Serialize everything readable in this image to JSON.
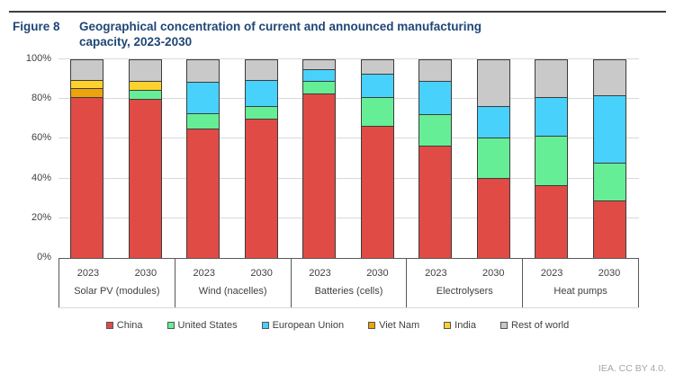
{
  "figure": {
    "label": "Figure 8",
    "title": "Geographical concentration of current and announced manufacturing capacity, 2023-2030"
  },
  "chart_data": {
    "type": "bar",
    "stacked": true,
    "orientation": "vertical",
    "unit": "%",
    "ylim": [
      0,
      100
    ],
    "yticks": [
      0,
      20,
      40,
      60,
      80,
      100
    ],
    "ytick_labels": [
      "0%",
      "20%",
      "40%",
      "60%",
      "80%",
      "100%"
    ],
    "grid": true,
    "legend_position": "bottom",
    "series": [
      {
        "name": "China",
        "color": "#e04b45"
      },
      {
        "name": "United States",
        "color": "#66ee96"
      },
      {
        "name": "European Union",
        "color": "#48d1fa"
      },
      {
        "name": "Viet Nam",
        "color": "#eda40a"
      },
      {
        "name": "India",
        "color": "#fdd22e"
      },
      {
        "name": "Rest of world",
        "color": "#c9c9c9"
      }
    ],
    "groups": [
      {
        "category": "Solar PV (modules)",
        "bars": [
          {
            "year": "2023",
            "values": [
              81,
              0,
              0,
              4.5,
              4,
              10.5
            ]
          },
          {
            "year": "2030",
            "values": [
              80,
              4.5,
              0,
              0,
              4.5,
              11
            ]
          }
        ]
      },
      {
        "category": "Wind (nacelles)",
        "bars": [
          {
            "year": "2023",
            "values": [
              65,
              8,
              15.5,
              0,
              0,
              11.5
            ]
          },
          {
            "year": "2030",
            "values": [
              70,
              6.5,
              13,
              0,
              0,
              10.5
            ]
          }
        ]
      },
      {
        "category": "Batteries (cells)",
        "bars": [
          {
            "year": "2023",
            "values": [
              83,
              6,
              6,
              0,
              0,
              5
            ]
          },
          {
            "year": "2030",
            "values": [
              66.5,
              14.5,
              12,
              0,
              0,
              7
            ]
          }
        ]
      },
      {
        "category": "Electrolysers",
        "bars": [
          {
            "year": "2023",
            "values": [
              56.5,
              16,
              16.5,
              0,
              0,
              11
            ]
          },
          {
            "year": "2030",
            "values": [
              40.5,
              20,
              16,
              0,
              0,
              23.5
            ]
          }
        ]
      },
      {
        "category": "Heat pumps",
        "bars": [
          {
            "year": "2023",
            "values": [
              36.5,
              25,
              19.5,
              0,
              0,
              19
            ]
          },
          {
            "year": "2030",
            "values": [
              29,
              19,
              34,
              0,
              0,
              18
            ]
          }
        ]
      }
    ]
  },
  "colors": {
    "title": "#1f4676",
    "gridline": "#d9d9d9",
    "axis_line": "#595959",
    "text": "#404040",
    "footer_text": "#a6a6a6"
  },
  "footer": {
    "credit": "IEA. CC BY 4.0."
  }
}
